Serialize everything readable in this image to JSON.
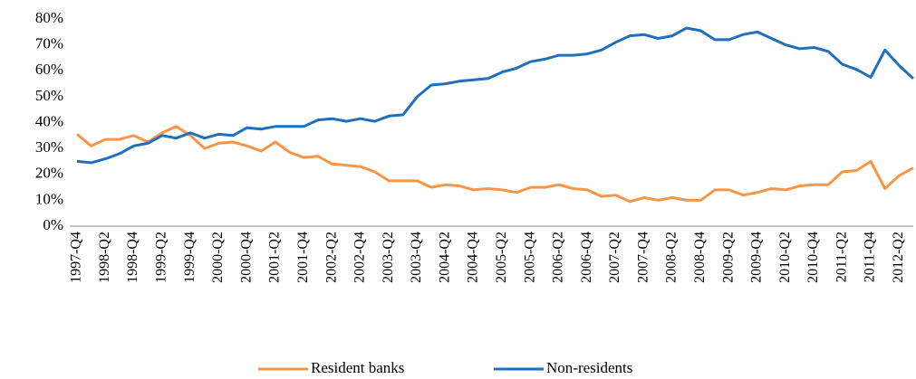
{
  "chart_data": {
    "type": "line",
    "categories": [
      "1997-Q4",
      null,
      "1998-Q2",
      null,
      "1998-Q4",
      null,
      "1999-Q2",
      null,
      "1999-Q4",
      null,
      "2000-Q2",
      null,
      "2000-Q4",
      null,
      "2001-Q2",
      null,
      "2001-Q4",
      null,
      "2002-Q2",
      null,
      "2002-Q4",
      null,
      "2003-Q2",
      null,
      "2003-Q4",
      null,
      "2004-Q2",
      null,
      "2004-Q4",
      null,
      "2005-Q2",
      null,
      "2005-Q4",
      null,
      "2006-Q2",
      null,
      "2006-Q4",
      null,
      "2007-Q2",
      null,
      "2007-Q4",
      null,
      "2008-Q2",
      null,
      "2008-Q4",
      null,
      "2009-Q2",
      null,
      "2009-Q4",
      null,
      "2010-Q2",
      null,
      "2010-Q4",
      null,
      "2011-Q2",
      null,
      "2011-Q4",
      null,
      "2012-Q2",
      null
    ],
    "series": [
      {
        "name": "Resident banks",
        "color": "#f79646",
        "values": [
          35.5,
          31,
          33.5,
          33.5,
          35,
          32.5,
          36,
          38.5,
          35,
          30,
          32,
          32.5,
          31,
          29,
          32.5,
          28.5,
          26.5,
          27,
          24,
          23.5,
          23,
          21,
          17.5,
          17.5,
          17.5,
          15,
          16,
          15.5,
          14,
          14.5,
          14,
          13,
          15,
          15,
          16,
          14.5,
          14,
          11.5,
          12,
          9.5,
          11,
          10,
          11,
          10,
          10,
          14,
          14,
          12,
          13,
          14.5,
          14,
          15.5,
          16,
          16,
          21,
          21.5,
          25,
          14.5,
          19.5,
          22.5
        ]
      },
      {
        "name": "Non-residents",
        "color": "#1f6fbf",
        "values": [
          25,
          24.5,
          26,
          28,
          31,
          32,
          35,
          34,
          36,
          34,
          35.5,
          35,
          38,
          37.5,
          38.5,
          38.5,
          38.5,
          41,
          41.5,
          40.5,
          41.5,
          40.5,
          42.5,
          43,
          50,
          54.5,
          55,
          56,
          56.5,
          57,
          59.5,
          61,
          63.5,
          64.5,
          66,
          66,
          66.5,
          68,
          71,
          73.5,
          74,
          72.5,
          73.5,
          76.5,
          75.5,
          72,
          72,
          74,
          75,
          72.5,
          70,
          68.5,
          69,
          67.5,
          62.5,
          60.5,
          57.5,
          68,
          62,
          57
        ]
      }
    ],
    "ylim": [
      0,
      80
    ],
    "yticks": [
      {
        "value": 0,
        "label": "0%"
      },
      {
        "value": 10,
        "label": "10%"
      },
      {
        "value": 20,
        "label": "20%"
      },
      {
        "value": 30,
        "label": "30%"
      },
      {
        "value": 40,
        "label": "40%"
      },
      {
        "value": 50,
        "label": "50%"
      },
      {
        "value": 60,
        "label": "60%"
      },
      {
        "value": 70,
        "label": "70%"
      },
      {
        "value": 80,
        "label": "80%"
      }
    ],
    "grid": false
  }
}
